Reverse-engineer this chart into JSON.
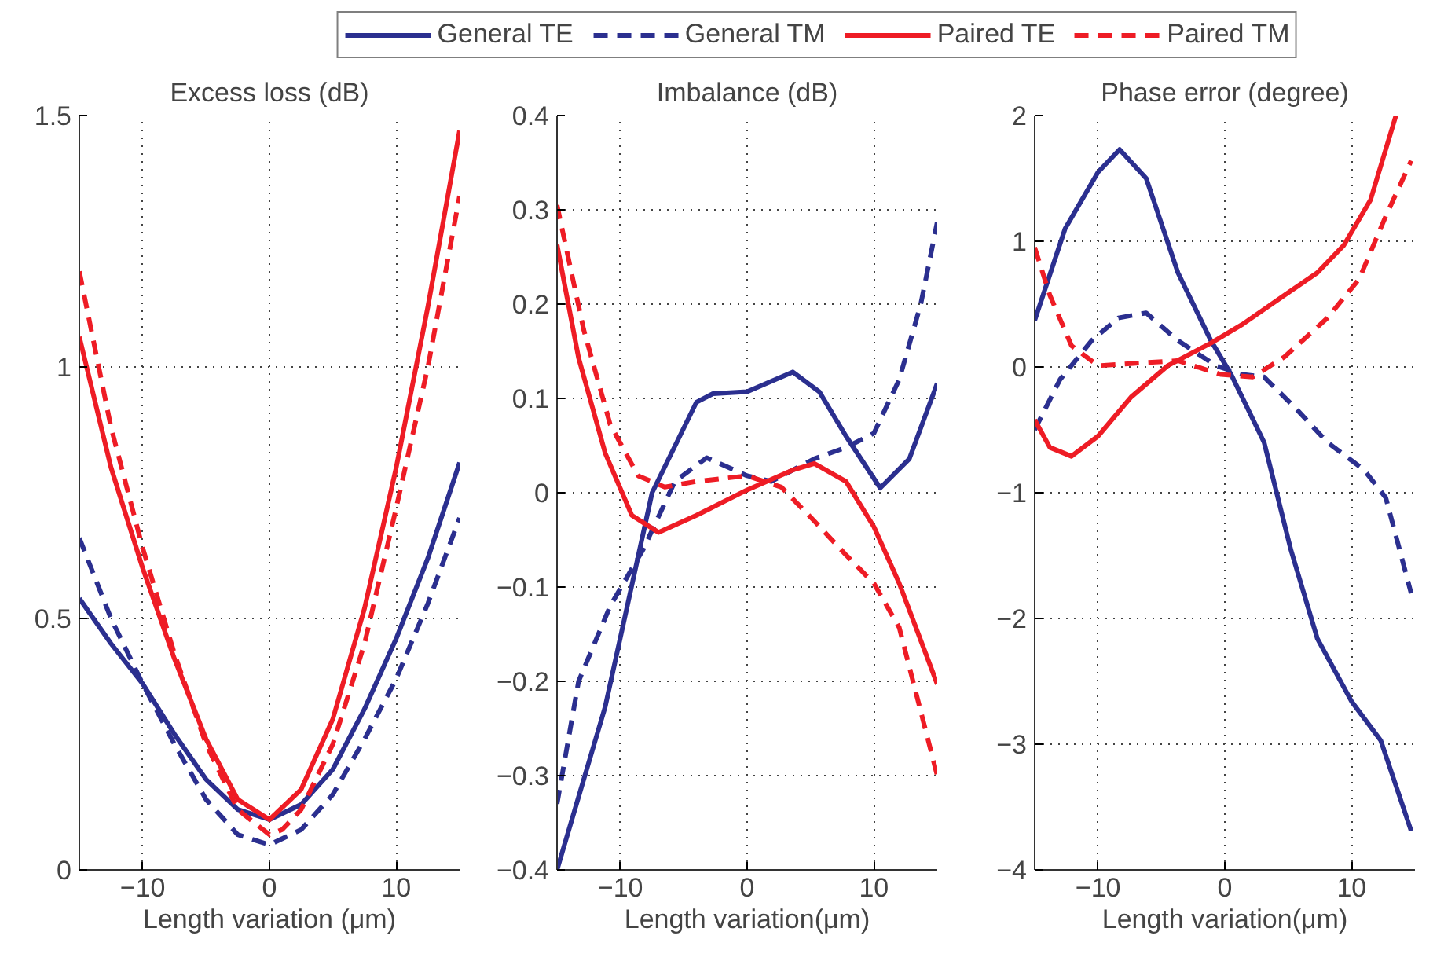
{
  "chart_data": [
    {
      "type": "line",
      "title": "Excess loss (dB)",
      "xlabel": "Length variation (μm)",
      "xlim": [
        -15,
        15
      ],
      "xticks": [
        -10,
        0,
        10
      ],
      "ylim": [
        0,
        1.5
      ],
      "yticks": [
        0,
        0.5,
        1,
        1.5
      ],
      "grid": true,
      "legend": "top",
      "series": [
        {
          "name": "General TE",
          "color": "#2b2f8f",
          "line_style": "solid",
          "x": [
            -15,
            -12.5,
            -10,
            -7.5,
            -5,
            -2.5,
            0,
            2.5,
            5,
            7.5,
            10,
            12.5,
            15
          ],
          "values": [
            0.54,
            0.45,
            0.37,
            0.27,
            0.18,
            0.12,
            0.1,
            0.13,
            0.2,
            0.32,
            0.46,
            0.62,
            0.81
          ]
        },
        {
          "name": "General TM",
          "color": "#2b2f8f",
          "line_style": "dashed",
          "x": [
            -15,
            -12.5,
            -10,
            -7.5,
            -5,
            -2.5,
            0,
            2.5,
            5,
            7.5,
            10,
            12.5,
            15
          ],
          "values": [
            0.66,
            0.5,
            0.37,
            0.25,
            0.14,
            0.07,
            0.05,
            0.08,
            0.15,
            0.26,
            0.38,
            0.53,
            0.7
          ]
        },
        {
          "name": "Paired TE",
          "color": "#ee1c25",
          "line_style": "solid",
          "x": [
            -15,
            -12.5,
            -10,
            -7.5,
            -5,
            -2.5,
            0,
            2.5,
            5,
            7.5,
            10,
            12.5,
            15
          ],
          "values": [
            1.06,
            0.8,
            0.6,
            0.42,
            0.26,
            0.14,
            0.1,
            0.16,
            0.3,
            0.52,
            0.8,
            1.12,
            1.47
          ]
        },
        {
          "name": "Paired TM",
          "color": "#ee1c25",
          "line_style": "dashed",
          "x": [
            -15,
            -12.5,
            -10,
            -7.5,
            -5,
            -2.5,
            0,
            1,
            2.5,
            5,
            7.5,
            10,
            12.5,
            15
          ],
          "values": [
            1.19,
            0.88,
            0.64,
            0.43,
            0.25,
            0.12,
            0.07,
            0.08,
            0.12,
            0.25,
            0.45,
            0.72,
            1.0,
            1.34
          ]
        }
      ]
    },
    {
      "type": "line",
      "title": "Imbalance (dB)",
      "xlabel": "Length variation(μm)",
      "xlim": [
        -15,
        15
      ],
      "xticks": [
        -10,
        0,
        10
      ],
      "ylim": [
        -0.4,
        0.4
      ],
      "yticks": [
        -0.4,
        -0.3,
        -0.2,
        -0.1,
        0,
        0.1,
        0.2,
        0.3,
        0.4
      ],
      "grid": true,
      "series": [
        {
          "color": "#2b2f8f",
          "line_style": "solid",
          "x": [
            -15,
            -11.2,
            -7.5,
            -4,
            -2.7,
            0,
            3.6,
            5.7,
            7.8,
            10.5,
            12.8,
            15
          ],
          "values": [
            -0.4,
            -0.227,
            0,
            0.096,
            0.105,
            0.107,
            0.128,
            0.107,
            0.06,
            0.005,
            0.036,
            0.116
          ]
        },
        {
          "color": "#2b2f8f",
          "line_style": "dashed",
          "x": [
            -15,
            -13.3,
            -10.8,
            -8.2,
            -5.7,
            -3.2,
            0,
            1.9,
            5.3,
            7.8,
            10,
            12,
            13.7,
            15
          ],
          "values": [
            -0.33,
            -0.2,
            -0.12,
            -0.06,
            0.012,
            0.037,
            0.018,
            0.012,
            0.036,
            0.048,
            0.063,
            0.12,
            0.2,
            0.287
          ]
        },
        {
          "color": "#ee1c25",
          "line_style": "solid",
          "x": [
            -15,
            -13.3,
            -11.2,
            -9.1,
            -7,
            -4,
            0,
            3.6,
            5.3,
            7.8,
            10,
            12,
            15
          ],
          "values": [
            0.263,
            0.143,
            0.042,
            -0.024,
            -0.042,
            -0.024,
            0.003,
            0.024,
            0.031,
            0.012,
            -0.036,
            -0.096,
            -0.203
          ]
        },
        {
          "color": "#ee1c25",
          "line_style": "dashed",
          "x": [
            -15,
            -12.9,
            -10.8,
            -8.6,
            -6.5,
            -4,
            0,
            2.7,
            5.3,
            7.8,
            10,
            12,
            15
          ],
          "values": [
            0.305,
            0.173,
            0.072,
            0.018,
            0.006,
            0.012,
            0.018,
            0.006,
            -0.03,
            -0.066,
            -0.096,
            -0.143,
            -0.3
          ]
        }
      ]
    },
    {
      "type": "line",
      "title": "Phase error (degree)",
      "xlabel": "Length variation(μm)",
      "xlim": [
        -15,
        15
      ],
      "xticks": [
        -10,
        0,
        10
      ],
      "ylim": [
        -4,
        2
      ],
      "yticks": [
        -4,
        -3,
        -2,
        -1,
        0,
        1,
        2
      ],
      "grid": true,
      "series": [
        {
          "color": "#2b2f8f",
          "line_style": "solid",
          "x": [
            -15,
            -12.6,
            -10,
            -8.3,
            -6.2,
            -3.7,
            -1.1,
            0.5,
            3.1,
            5.2,
            7.3,
            10,
            12.3,
            14.7
          ],
          "values": [
            0.37,
            1.1,
            1.55,
            1.73,
            1.5,
            0.75,
            0.21,
            -0.06,
            -0.6,
            -1.45,
            -2.16,
            -2.66,
            -2.97,
            -3.69
          ]
        },
        {
          "color": "#2b2f8f",
          "line_style": "dashed",
          "x": [
            -15,
            -13,
            -10.5,
            -8.4,
            -6.2,
            -3.7,
            -0.7,
            1.4,
            3.1,
            5.6,
            8.1,
            11,
            12.7,
            14.7
          ],
          "values": [
            -0.5,
            -0.1,
            0.21,
            0.39,
            0.43,
            0.21,
            0.01,
            -0.06,
            -0.08,
            -0.33,
            -0.6,
            -0.82,
            -1.04,
            -1.8
          ]
        },
        {
          "color": "#ee1c25",
          "line_style": "solid",
          "x": [
            -15,
            -13.8,
            -12.1,
            -10,
            -7.4,
            -4.5,
            -1.1,
            1.4,
            4.7,
            7.3,
            9.4,
            11.5,
            13.5
          ],
          "values": [
            -0.42,
            -0.64,
            -0.71,
            -0.55,
            -0.24,
            0.01,
            0.19,
            0.34,
            0.57,
            0.75,
            0.97,
            1.33,
            2.0
          ]
        },
        {
          "color": "#ee1c25",
          "line_style": "dashed",
          "x": [
            -15,
            -13.8,
            -12.1,
            -10,
            -7,
            -3.7,
            -0.3,
            2.2,
            4.7,
            8.1,
            10.6,
            12.7,
            14.7
          ],
          "values": [
            0.95,
            0.57,
            0.17,
            0.01,
            0.03,
            0.05,
            -0.06,
            -0.08,
            0.08,
            0.39,
            0.7,
            1.2,
            1.64
          ]
        }
      ]
    }
  ]
}
